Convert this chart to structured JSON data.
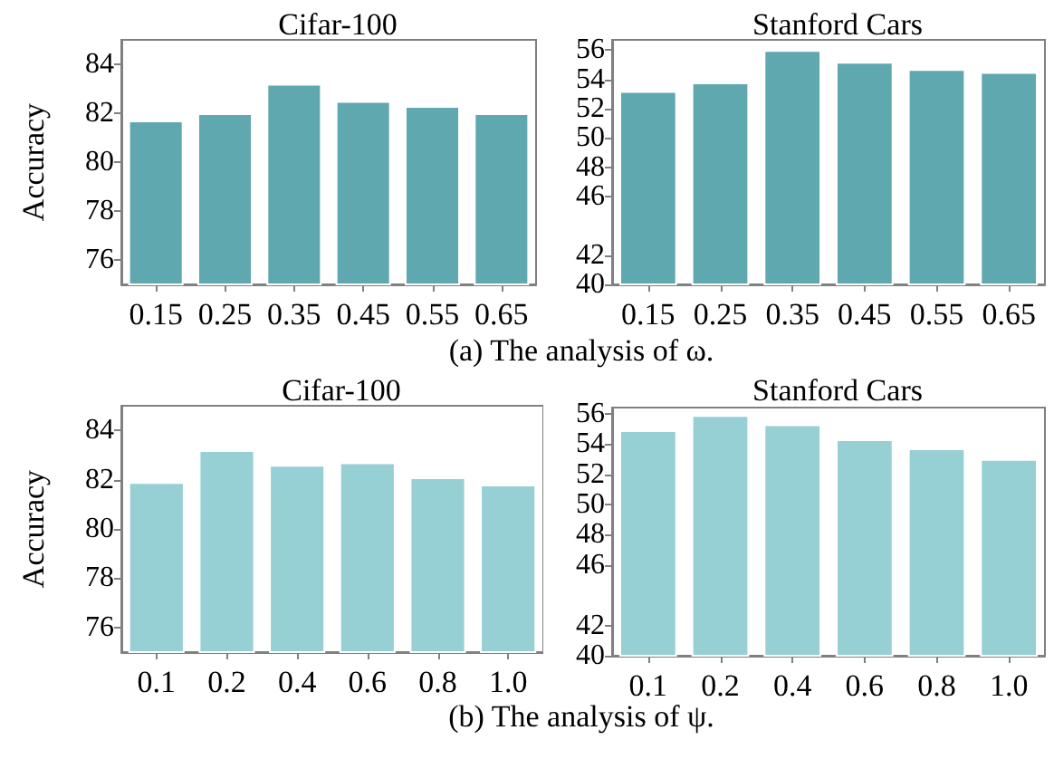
{
  "chart_data": [
    {
      "type": "bar",
      "title": "Cifar-100",
      "ylabel": "Accuracy",
      "categories": [
        "0.15",
        "0.25",
        "0.35",
        "0.45",
        "0.55",
        "0.65"
      ],
      "values": [
        81.7,
        82.0,
        83.2,
        82.5,
        82.3,
        82.0
      ],
      "color": "#5fa8b0",
      "ylim": [
        75,
        85
      ],
      "yticks": [
        76,
        78,
        80,
        82,
        84
      ],
      "annotations": [
        "(a) The analysis of ω."
      ]
    },
    {
      "type": "bar",
      "title": "Stanford Cars",
      "categories": [
        "0.15",
        "0.25",
        "0.35",
        "0.45",
        "0.55",
        "0.65"
      ],
      "values": [
        53.2,
        53.8,
        56.0,
        55.2,
        54.7,
        54.5
      ],
      "color": "#5fa8b0",
      "ylim": [
        40,
        56.7
      ],
      "yticks": [
        40,
        42,
        46,
        48,
        50,
        52,
        54,
        56
      ]
    },
    {
      "type": "bar",
      "title": "Cifar-100",
      "ylabel": "Accuracy",
      "categories": [
        "0.1",
        "0.2",
        "0.4",
        "0.6",
        "0.8",
        "1.0"
      ],
      "values": [
        81.9,
        83.2,
        82.6,
        82.7,
        82.1,
        81.8
      ],
      "color": "#96cfd4",
      "ylim": [
        75,
        85
      ],
      "yticks": [
        76,
        78,
        80,
        82,
        84
      ],
      "annotations": [
        "(b) The analysis of ψ."
      ]
    },
    {
      "type": "bar",
      "title": "Stanford Cars",
      "categories": [
        "0.1",
        "0.2",
        "0.4",
        "0.6",
        "0.8",
        "1.0"
      ],
      "values": [
        54.9,
        55.9,
        55.3,
        54.3,
        53.7,
        53.0
      ],
      "color": "#96cfd4",
      "ylim": [
        40,
        56.4
      ],
      "yticks": [
        40,
        42,
        46,
        48,
        50,
        52,
        54,
        56
      ]
    }
  ]
}
